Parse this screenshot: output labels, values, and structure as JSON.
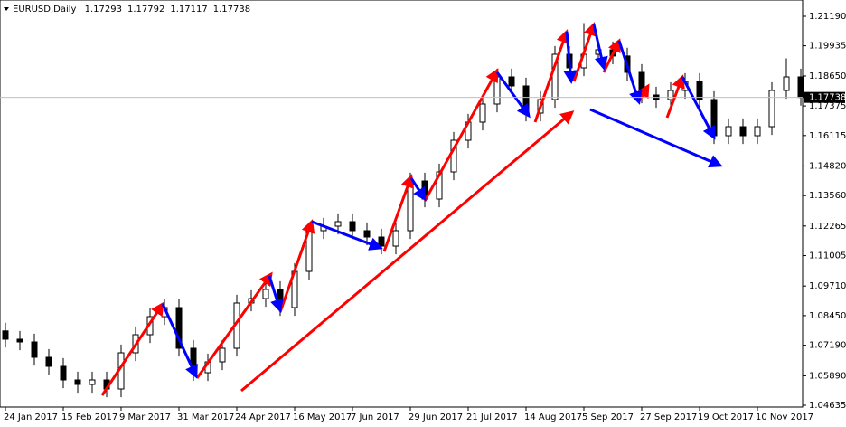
{
  "chart_data": {
    "type": "candlestick",
    "symbol": "EURUSD,Daily",
    "header_values": [
      1.17293,
      1.17792,
      1.17117,
      1.17738
    ],
    "current_price": 1.17738,
    "categories": [
      "24 Jan 2017",
      null,
      null,
      null,
      "15 Feb 2017",
      null,
      null,
      null,
      "9 Mar 2017",
      null,
      null,
      null,
      "31 Mar 2017",
      null,
      null,
      null,
      "24 Apr 2017",
      null,
      null,
      null,
      "16 May 2017",
      null,
      null,
      null,
      "7 Jun 2017",
      null,
      null,
      null,
      "29 Jun 2017",
      null,
      null,
      null,
      "21 Jul 2017",
      null,
      null,
      null,
      "14 Aug 2017",
      null,
      null,
      null,
      "5 Sep 2017",
      null,
      null,
      null,
      "27 Sep 2017",
      null,
      null,
      null,
      "19 Oct 2017",
      null,
      null,
      null,
      "10 Nov 2017",
      null,
      null,
      null
    ],
    "open": [
      1.078,
      1.07446,
      1.0733,
      1.06676,
      1.06291,
      1.05713,
      1.05521,
      1.05713,
      1.05328,
      1.06868,
      1.07638,
      1.08408,
      1.08793,
      1.07061,
      1.06021,
      1.06483,
      1.07061,
      1.08986,
      1.09178,
      1.09563,
      1.08793,
      1.10333,
      1.12066,
      1.12258,
      1.12451,
      1.12066,
      1.11796,
      1.11411,
      1.12066,
      1.14183,
      1.13413,
      1.14568,
      1.15916,
      1.16686,
      1.17456,
      1.18611,
      1.18226,
      1.17071,
      1.17648,
      1.19573,
      1.18996,
      1.19573,
      1.19766,
      1.195,
      1.18803,
      1.17841,
      1.17648,
      1.18033,
      1.18418,
      1.17648,
      1.16108,
      1.16493,
      1.16108,
      1.16493,
      1.18033,
      1.18611
    ],
    "high": [
      1.0815,
      1.07796,
      1.0768,
      1.07026,
      1.06641,
      1.06063,
      1.06063,
      1.06063,
      1.07218,
      1.07988,
      1.08758,
      1.09143,
      1.09143,
      1.07411,
      1.06833,
      1.07411,
      1.09336,
      1.09528,
      1.101,
      1.09913,
      1.10683,
      1.12416,
      1.12608,
      1.12801,
      1.12801,
      1.12416,
      1.12146,
      1.12416,
      1.14533,
      1.14533,
      1.14918,
      1.16266,
      1.17036,
      1.17806,
      1.18961,
      1.18961,
      1.18576,
      1.17998,
      1.19923,
      1.19923,
      1.209,
      1.20116,
      1.20116,
      1.1985,
      1.19153,
      1.18191,
      1.18383,
      1.18768,
      1.18768,
      1.17998,
      1.16843,
      1.16843,
      1.16843,
      1.18383,
      1.194,
      1.18961
    ],
    "low": [
      1.07096,
      1.0698,
      1.06326,
      1.05941,
      1.05363,
      1.05171,
      1.05171,
      1.04978,
      1.04978,
      1.06518,
      1.07288,
      1.08058,
      1.06711,
      1.05671,
      1.05671,
      1.06133,
      1.06711,
      1.08636,
      1.08828,
      1.08443,
      1.08443,
      1.09983,
      1.11716,
      1.11908,
      1.11716,
      1.11446,
      1.11061,
      1.11061,
      1.11716,
      1.13063,
      1.13063,
      1.14218,
      1.15566,
      1.16336,
      1.17106,
      1.17876,
      1.16721,
      1.16721,
      1.17298,
      1.18646,
      1.18646,
      1.19223,
      1.1915,
      1.18453,
      1.17491,
      1.17298,
      1.17298,
      1.17683,
      1.17298,
      1.15758,
      1.15758,
      1.15758,
      1.15758,
      1.16143,
      1.17683,
      1.17388
    ],
    "close": [
      1.07446,
      1.0733,
      1.06676,
      1.06291,
      1.05713,
      1.05521,
      1.05713,
      1.05328,
      1.06868,
      1.07638,
      1.08408,
      1.08793,
      1.07061,
      1.06021,
      1.06483,
      1.07061,
      1.08986,
      1.09178,
      1.09563,
      1.08793,
      1.10333,
      1.12066,
      1.12258,
      1.12451,
      1.12066,
      1.11796,
      1.11411,
      1.12066,
      1.14183,
      1.13413,
      1.14568,
      1.15916,
      1.16686,
      1.17456,
      1.18611,
      1.18226,
      1.17071,
      1.17648,
      1.19573,
      1.18996,
      1.19573,
      1.19766,
      1.195,
      1.18803,
      1.17841,
      1.17648,
      1.18033,
      1.18418,
      1.17648,
      1.16108,
      1.16493,
      1.16108,
      1.16493,
      1.18033,
      1.18611,
      1.17738
    ],
    "ylim": [
      1.04558,
      1.21883
    ],
    "yticks": [
      {
        "value": 1.2119,
        "label": "1.21190"
      },
      1.19935,
      {
        "value": 1.1865,
        "label": "1.18650"
      },
      1.17375,
      1.16115,
      {
        "value": 1.1482,
        "label": "1.14820"
      },
      {
        "value": 1.1356,
        "label": "1.13560"
      },
      1.12265,
      1.11005,
      {
        "value": 1.0971,
        "label": "1.09710"
      },
      {
        "value": 1.0845,
        "label": "1.08450"
      },
      {
        "value": 1.0719,
        "label": "1.07190"
      },
      {
        "value": 1.0589,
        "label": "1.05890"
      },
      1.04635
    ]
  }
}
